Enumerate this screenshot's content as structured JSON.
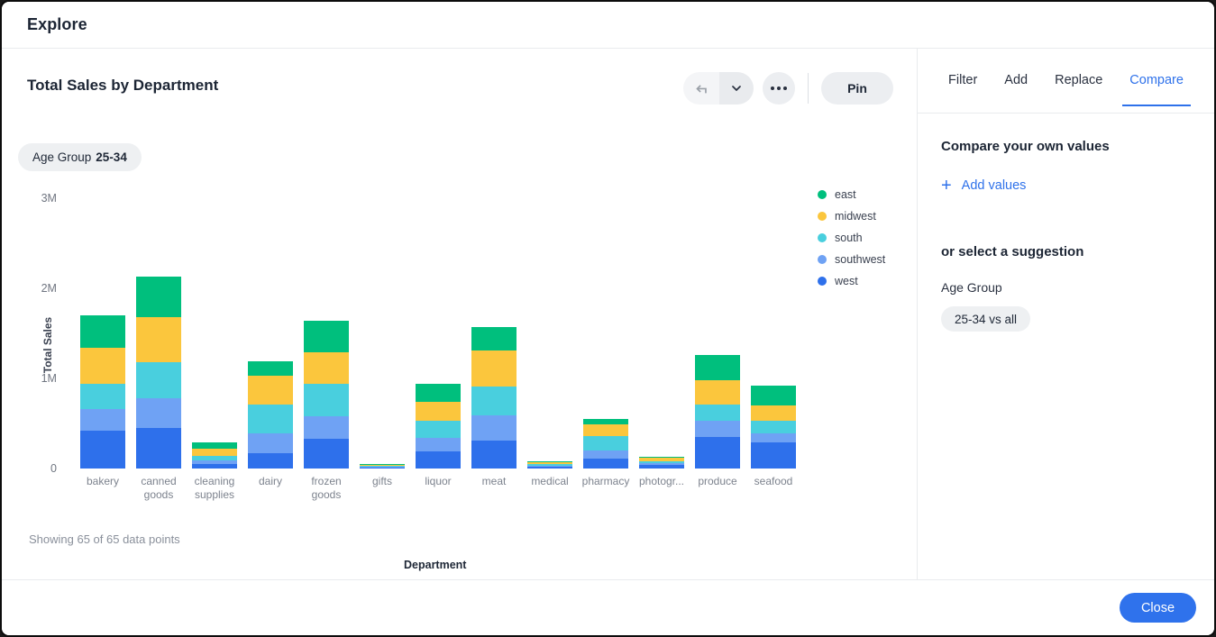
{
  "window": {
    "title": "Explore"
  },
  "chart_card": {
    "title": "Total Sales by Department",
    "toolbar": {
      "pin_label": "Pin"
    },
    "filter_chip": {
      "label": "Age Group",
      "value": "25-34"
    },
    "footnote": "Showing 65 of 65 data points"
  },
  "chart_data": {
    "type": "bar",
    "stacked": true,
    "title": "Total Sales by Department",
    "xlabel": "Department",
    "ylabel": "Total Sales",
    "value_unit": "millions",
    "ylim": [
      0,
      3
    ],
    "y_ticks": [
      "0",
      "1M",
      "2M",
      "3M"
    ],
    "grid": false,
    "legend_position": "right",
    "categories": [
      "bakery",
      "canned goods",
      "cleaning supplies",
      "dairy",
      "frozen goods",
      "gifts",
      "liquor",
      "meat",
      "medical",
      "pharmacy",
      "photogr...",
      "produce",
      "seafood"
    ],
    "stack_order_bottom_to_top": [
      "west",
      "southwest",
      "south",
      "midwest",
      "east"
    ],
    "series": [
      {
        "name": "east",
        "color": "#00bf7d",
        "values": [
          0.36,
          0.45,
          0.07,
          0.16,
          0.35,
          0.01,
          0.2,
          0.26,
          0.005,
          0.06,
          0.012,
          0.28,
          0.22
        ]
      },
      {
        "name": "midwest",
        "color": "#fbc63d",
        "values": [
          0.4,
          0.5,
          0.08,
          0.32,
          0.35,
          0.012,
          0.21,
          0.4,
          0.03,
          0.13,
          0.033,
          0.27,
          0.17
        ]
      },
      {
        "name": "south",
        "color": "#49cfde",
        "values": [
          0.28,
          0.4,
          0.05,
          0.32,
          0.36,
          0.01,
          0.19,
          0.32,
          0.015,
          0.16,
          0.02,
          0.18,
          0.14
        ]
      },
      {
        "name": "southwest",
        "color": "#6fa2f4",
        "values": [
          0.24,
          0.33,
          0.04,
          0.22,
          0.25,
          0.008,
          0.15,
          0.28,
          0.012,
          0.09,
          0.02,
          0.18,
          0.1
        ]
      },
      {
        "name": "west",
        "color": "#2e70eb",
        "values": [
          0.42,
          0.45,
          0.055,
          0.17,
          0.33,
          0.012,
          0.19,
          0.31,
          0.023,
          0.11,
          0.045,
          0.35,
          0.29
        ]
      }
    ]
  },
  "panel": {
    "tabs": [
      {
        "label": "Filter",
        "active": false
      },
      {
        "label": "Add",
        "active": false
      },
      {
        "label": "Replace",
        "active": false
      },
      {
        "label": "Compare",
        "active": true
      }
    ],
    "compare": {
      "heading": "Compare your own values",
      "add_values_label": "Add values",
      "suggestion_heading": "or select a suggestion",
      "suggestion_group": "Age Group",
      "suggestion_chip": "25-34 vs all"
    }
  },
  "footer": {
    "close_label": "Close"
  },
  "colors": {
    "accent_blue": "#2e71ea",
    "button_gray": "#eceef1",
    "border": "#e9ebee",
    "text_dark": "#1c2534",
    "text_gray": "#8a909b"
  }
}
